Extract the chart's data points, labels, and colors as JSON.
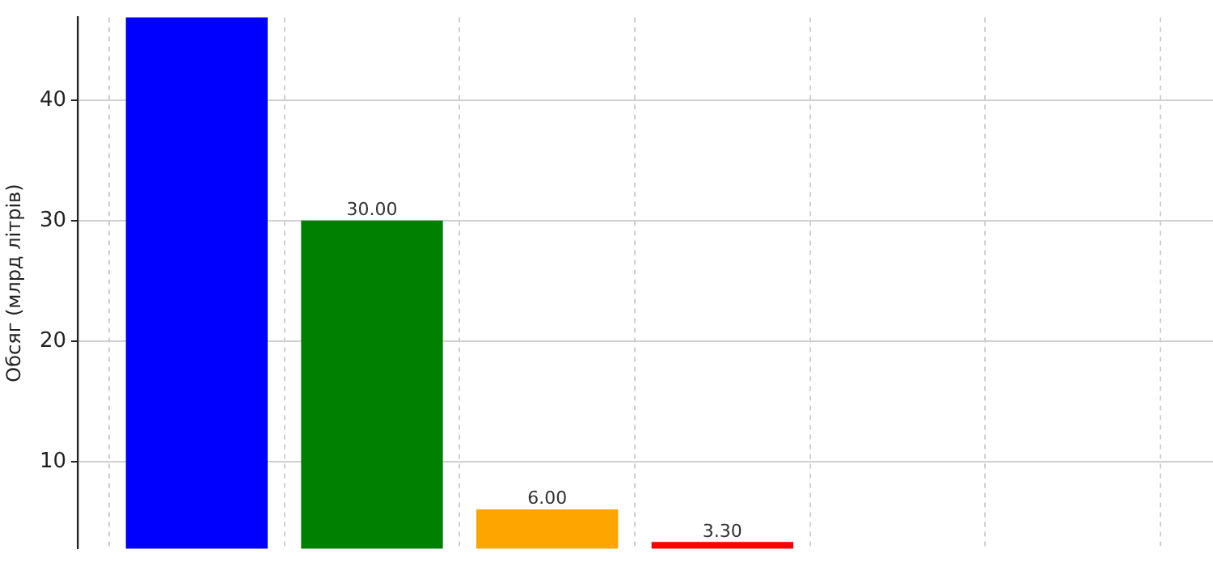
{
  "chart_data": {
    "type": "bar",
    "ylabel": "Обсяг (млрд літрів)",
    "categories": [
      null,
      null,
      null,
      null,
      null,
      null
    ],
    "values": [
      46.9,
      30,
      6,
      3.3,
      null,
      null
    ],
    "colors": [
      "#0000ff",
      "#008000",
      "#ffa500",
      "#ff0000",
      "#808080",
      "#808080"
    ],
    "value_labels": [
      null,
      "30.00",
      "6.00",
      "3.30",
      null,
      null
    ],
    "ylim": [
      2.8,
      46.9
    ],
    "yticks": [
      10,
      20,
      30,
      40
    ],
    "grid": true
  }
}
